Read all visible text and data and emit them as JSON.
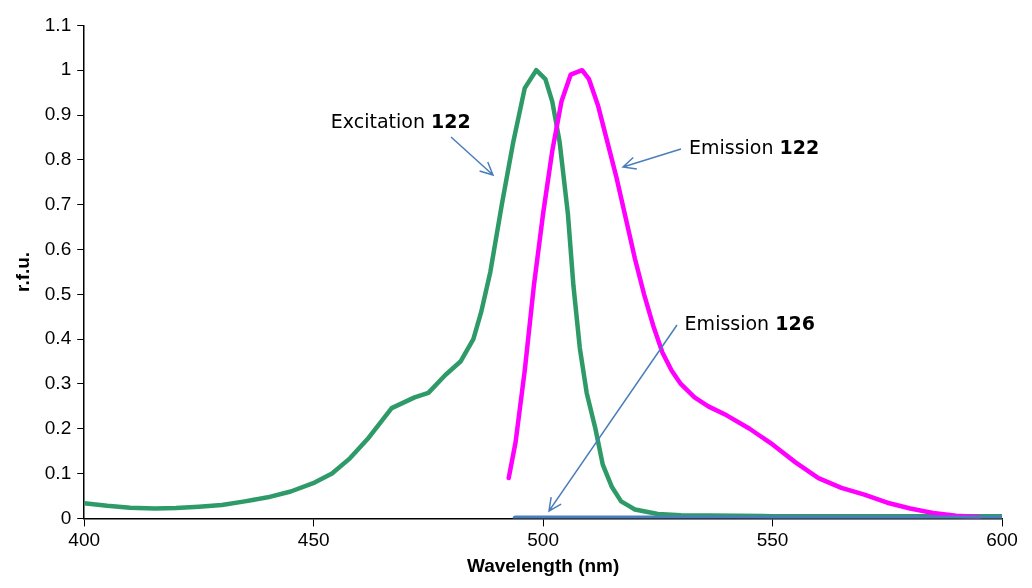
{
  "chart_data": {
    "type": "line",
    "xlabel": "Wavelength (nm)",
    "ylabel": "r.f.u.",
    "xlim": [
      400,
      600
    ],
    "xticks": [
      400,
      450,
      500,
      550,
      600
    ],
    "ylim": [
      0,
      1.1
    ],
    "yticks": [
      0,
      0.1,
      0.2,
      0.3,
      0.4,
      0.5,
      0.6,
      0.7,
      0.8,
      0.9,
      1,
      1.1
    ],
    "grid": false,
    "legend": false,
    "marker": "none",
    "line_style": "solid",
    "series": [
      {
        "color": "#2e9a68",
        "x": [
          400,
          405,
          410,
          415.4,
          420,
          425,
          430,
          435,
          440,
          445,
          450.2,
          454,
          457.9,
          462,
          467,
          472,
          475,
          478.7,
          482,
          484.8,
          486.5,
          488.5,
          491,
          493.5,
          496,
          498.5,
          500.5,
          502,
          503.6,
          505.4,
          506.6,
          508,
          509.5,
          511.4,
          513,
          515,
          517,
          520,
          525,
          530,
          550,
          575,
          600
        ],
        "values": [
          0.034,
          0.028,
          0.024,
          0.022,
          0.023,
          0.026,
          0.03,
          0.038,
          0.047,
          0.06,
          0.08,
          0.1,
          0.134,
          0.18,
          0.246,
          0.27,
          0.28,
          0.32,
          0.35,
          0.4,
          0.46,
          0.55,
          0.7,
          0.84,
          0.96,
          1,
          0.98,
          0.93,
          0.84,
          0.68,
          0.52,
          0.38,
          0.28,
          0.2,
          0.12,
          0.07,
          0.038,
          0.02,
          0.01,
          0.007,
          0.005,
          0.005,
          0.005
        ]
      },
      {
        "color": "#ff00ff",
        "x": [
          492.5,
          494,
          496,
          498,
          500,
          502,
          504,
          506,
          508.5,
          510,
          512,
          514,
          516,
          518,
          520,
          522,
          524,
          526,
          528,
          530,
          533,
          536,
          540,
          545,
          550,
          555,
          560,
          565,
          570,
          575,
          580,
          585,
          590,
          595
        ],
        "values": [
          0.09,
          0.17,
          0.33,
          0.52,
          0.68,
          0.82,
          0.93,
          0.99,
          1,
          0.98,
          0.92,
          0.84,
          0.76,
          0.67,
          0.58,
          0.5,
          0.43,
          0.37,
          0.33,
          0.3,
          0.27,
          0.25,
          0.23,
          0.2,
          0.165,
          0.125,
          0.09,
          0.068,
          0.053,
          0.035,
          0.022,
          0.012,
          0.006,
          0.003
        ]
      },
      {
        "color": "#4a7ebb",
        "x": [
          494,
          520,
          550,
          600
        ],
        "values": [
          0,
          0,
          0,
          0
        ]
      }
    ],
    "annotations": [
      "Excitation 122",
      "Emission 122",
      "Emission 126"
    ]
  }
}
